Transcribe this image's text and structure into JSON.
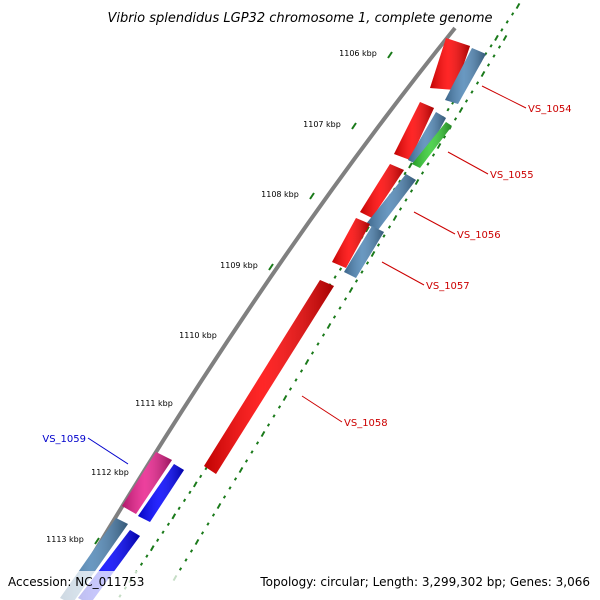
{
  "title": "Vibrio splendidus LGP32 chromosome 1, complete genome",
  "footer": {
    "accession": "Accession: NC_011753",
    "summary": "Topology: circular; Length: 3,299,302 bp; Genes: 3,066"
  },
  "colors": {
    "backbone": "#808080",
    "tick": "#1a7a1a",
    "red_gene": "#ff0000",
    "steelblue_gene": "#4f86b6",
    "green_gene": "#33cc33",
    "pink_gene": "#e91e8c",
    "blue_gene": "#0000ff",
    "label_red": "#cc0000",
    "label_blue": "#0000cc"
  },
  "ticks": [
    "1106 kbp",
    "1107 kbp",
    "1108 kbp",
    "1109 kbp",
    "1110 kbp",
    "1111 kbp",
    "1112 kbp",
    "1113 kbp"
  ],
  "genes": [
    {
      "id": "VS_1054",
      "strand": "forward",
      "color": "red_gene"
    },
    {
      "id": "VS_1054",
      "strand": "reverse",
      "color": "steelblue_gene"
    },
    {
      "id": "VS_1055",
      "strand": "forward",
      "color": "red_gene"
    },
    {
      "id": "VS_1055",
      "strand": "reverse",
      "color": "steelblue_gene"
    },
    {
      "id": "VS_1055",
      "strand": "reverse",
      "color": "green_gene"
    },
    {
      "id": "VS_1056",
      "strand": "forward",
      "color": "red_gene"
    },
    {
      "id": "VS_1056",
      "strand": "reverse",
      "color": "steelblue_gene"
    },
    {
      "id": "VS_1057",
      "strand": "forward",
      "color": "red_gene"
    },
    {
      "id": "VS_1057",
      "strand": "reverse",
      "color": "steelblue_gene"
    },
    {
      "id": "VS_1058",
      "strand": "forward",
      "color": "red_gene"
    },
    {
      "id": "VS_1059",
      "strand": "forward",
      "color": "pink_gene"
    },
    {
      "id": "VS_1059",
      "strand": "reverse",
      "color": "blue_gene"
    },
    {
      "id": "VS_1059",
      "strand": "forward",
      "color": "steelblue_gene"
    },
    {
      "id": "VS_1059",
      "strand": "reverse",
      "color": "blue_gene"
    }
  ],
  "labels": [
    {
      "text": "VS_1054",
      "color": "label_red"
    },
    {
      "text": "VS_1055",
      "color": "label_red"
    },
    {
      "text": "VS_1056",
      "color": "label_red"
    },
    {
      "text": "VS_1057",
      "color": "label_red"
    },
    {
      "text": "VS_1058",
      "color": "label_red"
    },
    {
      "text": "VS_1059",
      "color": "label_blue"
    }
  ]
}
